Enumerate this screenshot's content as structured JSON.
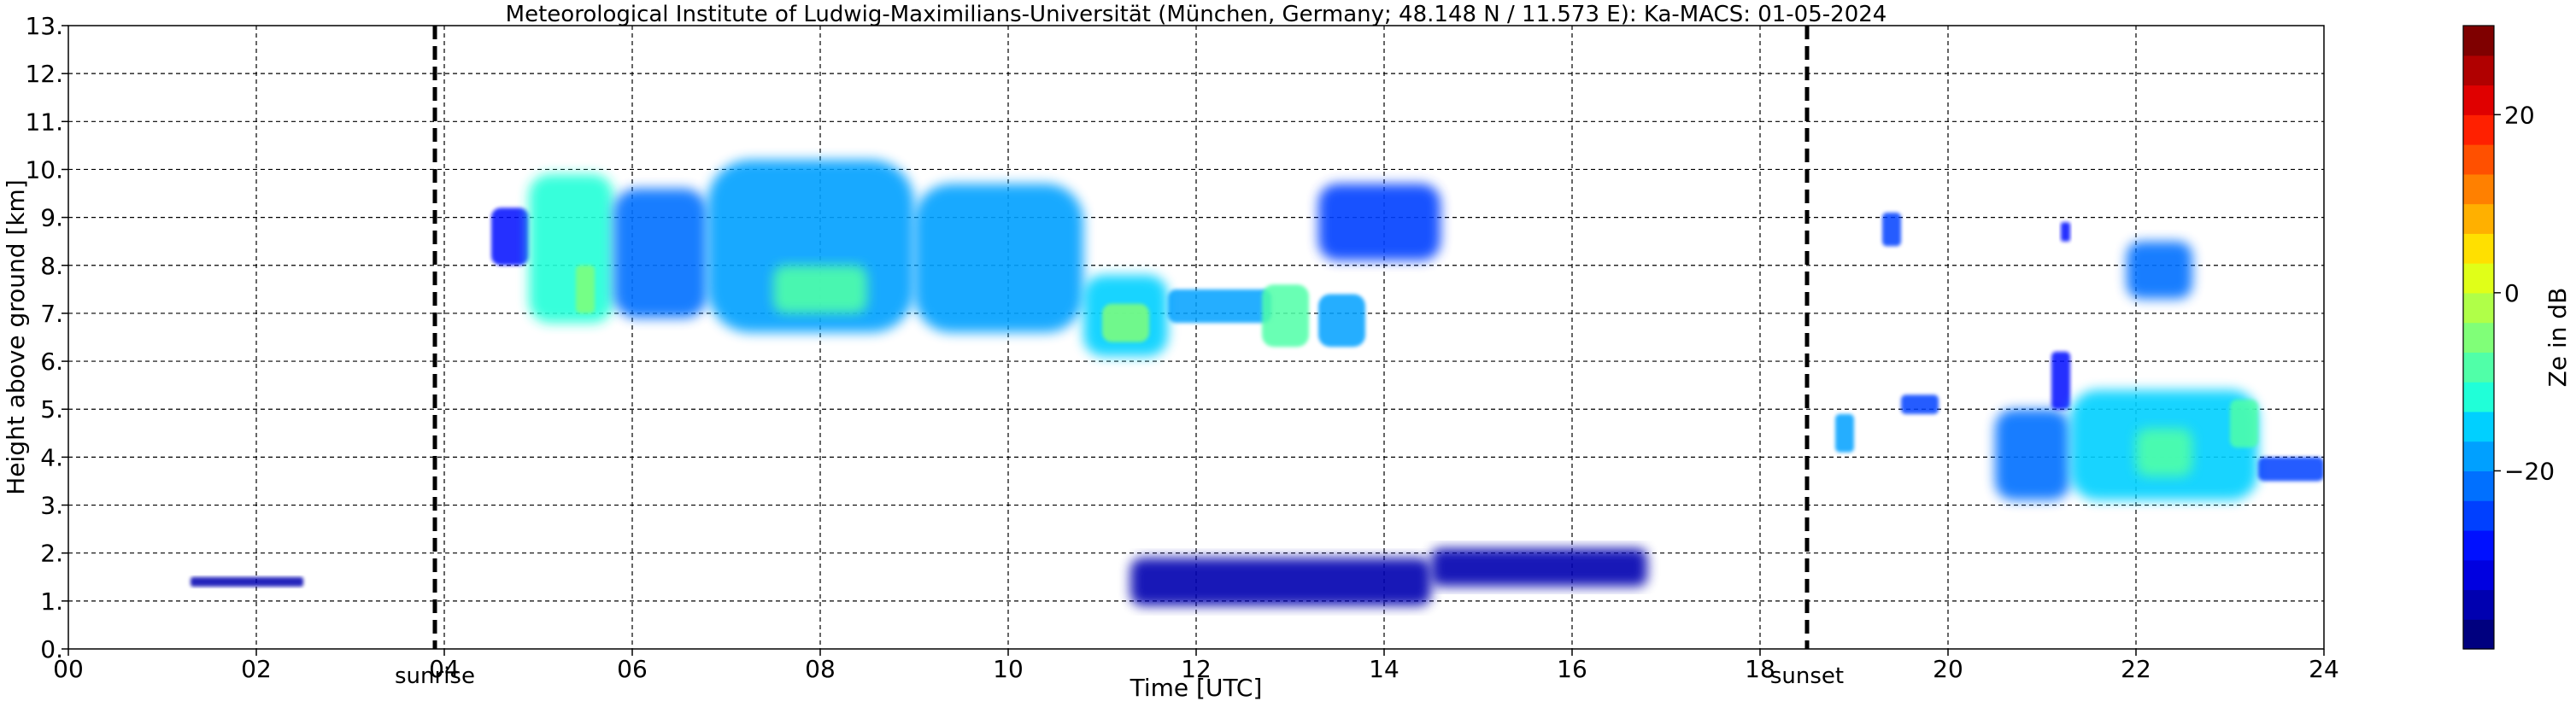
{
  "chart_data": {
    "type": "heatmap",
    "title": "Meteorological Institute of Ludwig-Maximilians-Universität (München, Germany; 48.148 N / 11.573 E):    Ka-MACS: 01-05-2024",
    "xlabel": "Time [UTC]",
    "ylabel": "Height above ground [km]",
    "xlim": [
      0,
      24
    ],
    "ylim": [
      0,
      13
    ],
    "x_ticks": [
      {
        "value": 0,
        "label": "00"
      },
      {
        "value": 2,
        "label": "02"
      },
      {
        "value": 4,
        "label": "04"
      },
      {
        "value": 6,
        "label": "06"
      },
      {
        "value": 8,
        "label": "08"
      },
      {
        "value": 10,
        "label": "10"
      },
      {
        "value": 12,
        "label": "12"
      },
      {
        "value": 14,
        "label": "14"
      },
      {
        "value": 16,
        "label": "16"
      },
      {
        "value": 18,
        "label": "18"
      },
      {
        "value": 20,
        "label": "20"
      },
      {
        "value": 22,
        "label": "22"
      },
      {
        "value": 24,
        "label": "24"
      }
    ],
    "y_ticks": [
      {
        "value": 0,
        "label": "0."
      },
      {
        "value": 1,
        "label": "1."
      },
      {
        "value": 2,
        "label": "2."
      },
      {
        "value": 3,
        "label": "3."
      },
      {
        "value": 4,
        "label": "4."
      },
      {
        "value": 5,
        "label": "5."
      },
      {
        "value": 6,
        "label": "6."
      },
      {
        "value": 7,
        "label": "7."
      },
      {
        "value": 8,
        "label": "8."
      },
      {
        "value": 9,
        "label": "9."
      },
      {
        "value": 10,
        "label": "10."
      },
      {
        "value": 11,
        "label": "11."
      },
      {
        "value": 12,
        "label": "12."
      },
      {
        "value": 13,
        "label": "13."
      }
    ],
    "grid": true,
    "markers": [
      {
        "label": "sunrise",
        "time": 3.9
      },
      {
        "label": "sunset",
        "time": 18.5
      }
    ],
    "colorbar": {
      "label": "Ze in dB",
      "range": [
        -40,
        30
      ],
      "ticks": [
        {
          "value": 20,
          "label": "20"
        },
        {
          "value": 0,
          "label": "0"
        },
        {
          "value": -20,
          "label": "−20"
        }
      ],
      "colors": [
        "#00007f",
        "#0000b0",
        "#0000e0",
        "#0010ff",
        "#0040ff",
        "#0070ff",
        "#00a0ff",
        "#00d0ff",
        "#20ffd8",
        "#50ffa8",
        "#80ff78",
        "#b0ff48",
        "#e0ff18",
        "#ffe000",
        "#ffb000",
        "#ff8000",
        "#ff5000",
        "#ff2000",
        "#e00000",
        "#b00000",
        "#7f0000"
      ]
    },
    "echo_regions": [
      {
        "x": [
          4.5,
          4.9
        ],
        "y": [
          8.0,
          9.2
        ],
        "ze": -28
      },
      {
        "x": [
          4.9,
          5.8
        ],
        "y": [
          6.8,
          9.9
        ],
        "ze": -12
      },
      {
        "x": [
          5.4,
          5.6
        ],
        "y": [
          7.0,
          8.0
        ],
        "ze": -6
      },
      {
        "x": [
          5.8,
          6.8
        ],
        "y": [
          6.9,
          9.6
        ],
        "ze": -22
      },
      {
        "x": [
          6.8,
          9.0
        ],
        "y": [
          6.6,
          10.2
        ],
        "ze": -18
      },
      {
        "x": [
          7.5,
          8.5
        ],
        "y": [
          7.0,
          8.0
        ],
        "ze": -8
      },
      {
        "x": [
          9.0,
          10.8
        ],
        "y": [
          6.6,
          9.7
        ],
        "ze": -20
      },
      {
        "x": [
          10.8,
          11.7
        ],
        "y": [
          6.1,
          7.8
        ],
        "ze": -14
      },
      {
        "x": [
          11.0,
          11.5
        ],
        "y": [
          6.4,
          7.2
        ],
        "ze": -6
      },
      {
        "x": [
          11.7,
          12.8
        ],
        "y": [
          6.8,
          7.5
        ],
        "ze": -20
      },
      {
        "x": [
          12.7,
          13.2
        ],
        "y": [
          6.3,
          7.6
        ],
        "ze": -10
      },
      {
        "x": [
          13.3,
          13.8
        ],
        "y": [
          6.3,
          7.4
        ],
        "ze": -18
      },
      {
        "x": [
          13.3,
          14.6
        ],
        "y": [
          8.1,
          9.7
        ],
        "ze": -26
      },
      {
        "x": [
          19.3,
          19.5
        ],
        "y": [
          8.4,
          9.1
        ],
        "ze": -26
      },
      {
        "x": [
          21.2,
          21.3
        ],
        "y": [
          8.5,
          8.9
        ],
        "ze": -28
      },
      {
        "x": [
          21.9,
          22.6
        ],
        "y": [
          7.3,
          8.5
        ],
        "ze": -22
      },
      {
        "x": [
          18.8,
          19.0
        ],
        "y": [
          4.1,
          4.9
        ],
        "ze": -18
      },
      {
        "x": [
          19.5,
          19.9
        ],
        "y": [
          4.9,
          5.3
        ],
        "ze": -26
      },
      {
        "x": [
          20.5,
          21.3
        ],
        "y": [
          3.1,
          5.0
        ],
        "ze": -22
      },
      {
        "x": [
          21.1,
          21.3
        ],
        "y": [
          5.0,
          6.2
        ],
        "ze": -28
      },
      {
        "x": [
          21.3,
          23.3
        ],
        "y": [
          3.1,
          5.4
        ],
        "ze": -16
      },
      {
        "x": [
          22.0,
          22.6
        ],
        "y": [
          3.6,
          4.6
        ],
        "ze": -8
      },
      {
        "x": [
          23.0,
          23.3
        ],
        "y": [
          4.2,
          5.2
        ],
        "ze": -8
      },
      {
        "x": [
          23.3,
          24.0
        ],
        "y": [
          3.5,
          4.0
        ],
        "ze": -26
      },
      {
        "x": [
          1.3,
          2.5
        ],
        "y": [
          1.3,
          1.5
        ],
        "ze": -34
      },
      {
        "x": [
          11.3,
          14.5
        ],
        "y": [
          0.9,
          1.9
        ],
        "ze": -36
      },
      {
        "x": [
          14.5,
          16.8
        ],
        "y": [
          1.3,
          2.1
        ],
        "ze": -34
      }
    ]
  }
}
